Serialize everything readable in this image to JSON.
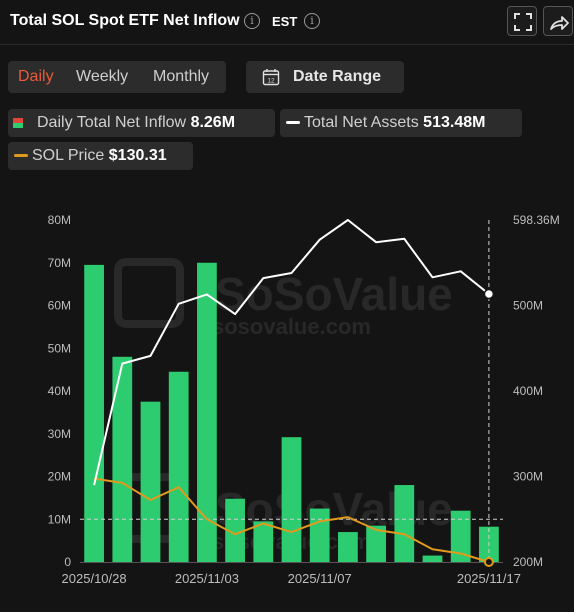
{
  "header": {
    "title": "Total SOL Spot ETF Net Inflow",
    "timezone": "EST"
  },
  "period_tabs": [
    {
      "label": "Daily",
      "active": true
    },
    {
      "label": "Weekly",
      "active": false
    },
    {
      "label": "Monthly",
      "active": false
    }
  ],
  "date_range": {
    "label": "Date Range",
    "icon_number": "12"
  },
  "legend": {
    "inflow": {
      "label": "Daily Total Net Inflow",
      "value": "8.26M",
      "color": "#2ecc71"
    },
    "assets": {
      "label": "Total Net Assets",
      "value": "513.48M",
      "color": "#ffffff"
    },
    "price": {
      "label": "SOL Price",
      "value": "$130.31",
      "color": "#e09a1e"
    }
  },
  "watermark": {
    "brand": "SoSoValue",
    "site": "sosovalue.com"
  },
  "chart_data": {
    "type": "bar",
    "x_tick_labels": [
      "2025/10/28",
      "2025/11/03",
      "2025/11/07",
      "2025/11/17"
    ],
    "x_tick_index": [
      0,
      4,
      8,
      14
    ],
    "y_left": {
      "ticks": [
        "0",
        "10M",
        "20M",
        "30M",
        "40M",
        "50M",
        "60M",
        "70M",
        "80M"
      ],
      "min": 0,
      "max": 80
    },
    "y_right": {
      "ticks": [
        "200M",
        "300M",
        "400M",
        "500M"
      ],
      "min": 200,
      "max": 600,
      "top_label": "598.36M"
    },
    "series": [
      {
        "name": "Daily Total Net Inflow",
        "type": "bar",
        "axis": "left",
        "values": [
          69.5,
          48,
          37.5,
          44.5,
          70,
          14.8,
          9.5,
          29.2,
          12.5,
          7,
          8.5,
          18,
          1.5,
          12,
          8.26
        ]
      },
      {
        "name": "Total Net Assets",
        "type": "line",
        "axis": "right",
        "values": [
          290,
          432,
          441,
          502,
          513,
          490,
          532,
          538,
          577,
          600,
          574,
          578,
          533,
          540,
          513.48
        ]
      },
      {
        "name": "SOL Price",
        "type": "line",
        "axis": "left",
        "values": [
          19.5,
          18.5,
          14.5,
          17.5,
          10,
          6.5,
          9,
          7,
          9.5,
          10.5,
          7.5,
          6.5,
          3,
          2,
          0
        ]
      }
    ],
    "reference_line_left": 10,
    "highlight_index": 14
  }
}
